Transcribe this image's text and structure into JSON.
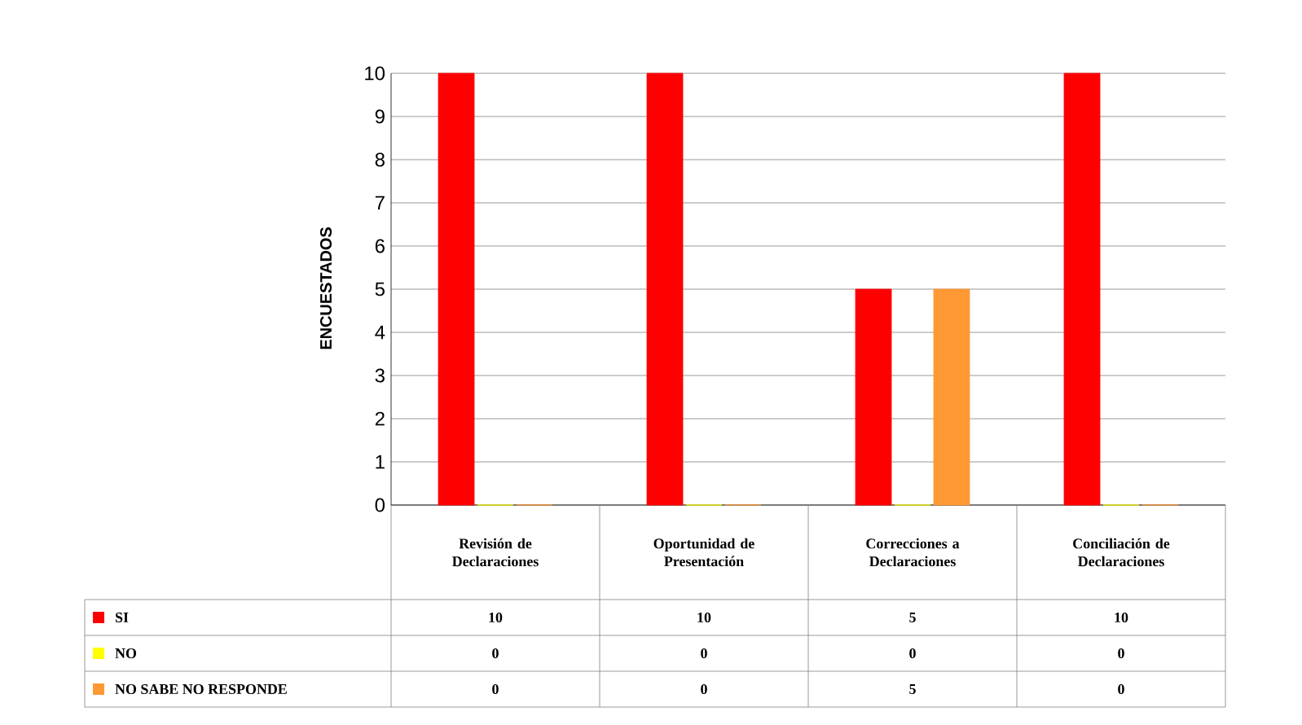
{
  "chart_data": {
    "type": "bar",
    "ylabel": "ENCUESTADOS",
    "categories": [
      "Revisión de Declaraciones",
      "Oportunidad de Presentación",
      "Correcciones a Declaraciones",
      "Conciliación de Declaraciones"
    ],
    "series": [
      {
        "name": "SI",
        "color": "#ff0000",
        "values": [
          10,
          10,
          5,
          10
        ]
      },
      {
        "name": "NO",
        "color": "#ffff00",
        "values": [
          0,
          0,
          0,
          0
        ]
      },
      {
        "name": "NO SABE NO RESPONDE",
        "color": "#ff9933",
        "values": [
          0,
          0,
          5,
          0
        ]
      }
    ],
    "ylim": [
      0,
      10
    ],
    "yticks": [
      0,
      1,
      2,
      3,
      4,
      5,
      6,
      7,
      8,
      9,
      10
    ],
    "grid": "y",
    "legend": "bottom",
    "data_labels": true
  }
}
